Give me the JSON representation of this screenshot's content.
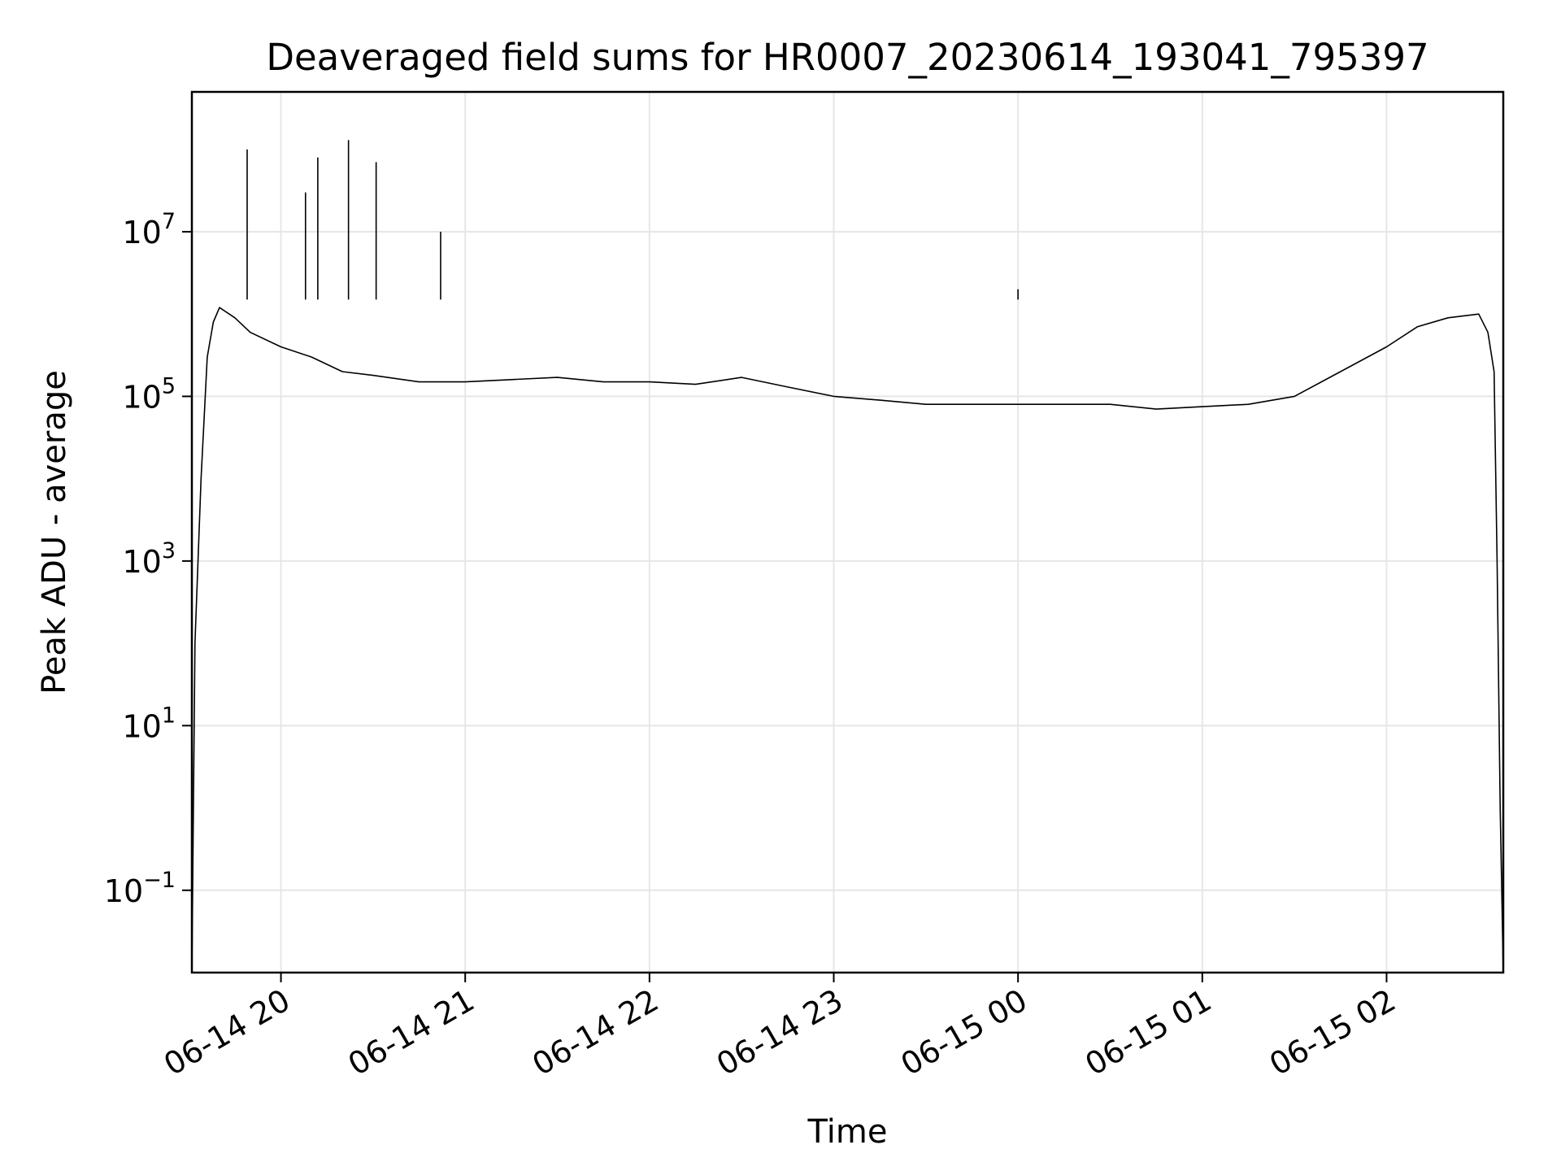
{
  "chart_data": {
    "type": "line",
    "title": "Deaveraged field sums for HR0007_20230614_193041_795397",
    "xlabel": "Time",
    "ylabel": "Peak ADU - average",
    "yscale": "log",
    "ylim": [
      0.01,
      500000000
    ],
    "xlim": [
      "2023-06-14T19:31",
      "2023-06-15T02:38"
    ],
    "grid": true,
    "x_ticks": [
      "06-14 20",
      "06-14 21",
      "06-14 22",
      "06-14 23",
      "06-15 00",
      "06-15 01",
      "06-15 02"
    ],
    "x_tick_times": [
      "2023-06-14T20:00",
      "2023-06-14T21:00",
      "2023-06-14T22:00",
      "2023-06-14T23:00",
      "2023-06-15T00:00",
      "2023-06-15T01:00",
      "2023-06-15T02:00"
    ],
    "y_ticks": [
      {
        "base": "10",
        "exp": "7",
        "value": 10000000
      },
      {
        "base": "10",
        "exp": "5",
        "value": 100000
      },
      {
        "base": "10",
        "exp": "3",
        "value": 1000
      },
      {
        "base": "10",
        "exp": "1",
        "value": 10
      },
      {
        "base": "10",
        "exp": "−1",
        "value": 0.1
      }
    ],
    "series": [
      {
        "color": "#000000",
        "x": [
          "2023-06-14T19:31",
          "2023-06-14T19:32",
          "2023-06-14T19:34",
          "2023-06-14T19:36",
          "2023-06-14T19:38",
          "2023-06-14T19:40",
          "2023-06-14T19:45",
          "2023-06-14T19:50",
          "2023-06-14T20:00",
          "2023-06-14T20:10",
          "2023-06-14T20:20",
          "2023-06-14T20:30",
          "2023-06-14T20:45",
          "2023-06-14T21:00",
          "2023-06-14T21:15",
          "2023-06-14T21:30",
          "2023-06-14T21:45",
          "2023-06-14T22:00",
          "2023-06-14T22:15",
          "2023-06-14T22:30",
          "2023-06-14T22:45",
          "2023-06-14T23:00",
          "2023-06-14T23:15",
          "2023-06-14T23:30",
          "2023-06-14T23:45",
          "2023-06-15T00:00",
          "2023-06-15T00:15",
          "2023-06-15T00:30",
          "2023-06-15T00:45",
          "2023-06-15T01:00",
          "2023-06-15T01:15",
          "2023-06-15T01:30",
          "2023-06-15T01:45",
          "2023-06-15T02:00",
          "2023-06-15T02:10",
          "2023-06-15T02:20",
          "2023-06-15T02:30",
          "2023-06-15T02:33",
          "2023-06-15T02:35",
          "2023-06-15T02:36",
          "2023-06-15T02:37",
          "2023-06-15T02:38"
        ],
        "y": [
          0.01,
          100,
          10000,
          300000,
          800000,
          1200000,
          900000,
          600000,
          400000,
          300000,
          200000,
          180000,
          150000,
          150000,
          160000,
          170000,
          150000,
          150000,
          140000,
          170000,
          130000,
          100000,
          90000,
          80000,
          80000,
          80000,
          80000,
          80000,
          70000,
          75000,
          80000,
          100000,
          200000,
          400000,
          700000,
          900000,
          1000000,
          600000,
          200000,
          1000,
          1,
          0.01
        ]
      }
    ],
    "spikes": [
      {
        "x": "2023-06-14T19:49",
        "y": 100000000
      },
      {
        "x": "2023-06-14T20:08",
        "y": 30000000
      },
      {
        "x": "2023-06-14T20:12",
        "y": 80000000
      },
      {
        "x": "2023-06-14T20:22",
        "y": 130000000
      },
      {
        "x": "2023-06-14T20:31",
        "y": 70000000
      },
      {
        "x": "2023-06-14T20:52",
        "y": 10000000
      },
      {
        "x": "2023-06-15T00:00",
        "y": 2000000
      }
    ]
  }
}
